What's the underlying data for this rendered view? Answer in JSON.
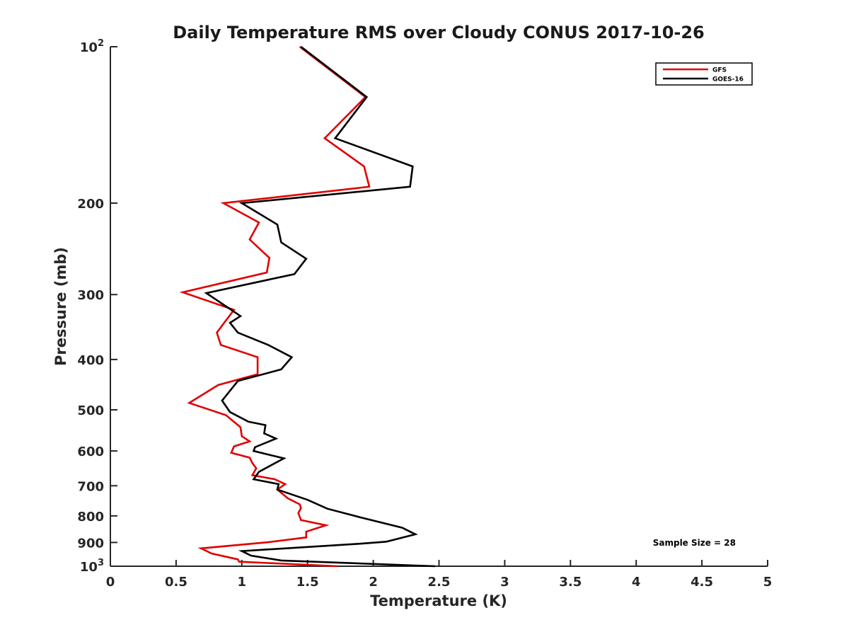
{
  "chart_data": {
    "type": "line",
    "title": "Daily Temperature RMS over Cloudy CONUS 2017-10-26",
    "xlabel": "Temperature (K)",
    "ylabel": "Pressure (mb)",
    "xlim": [
      0,
      5
    ],
    "ylim": [
      100,
      1000
    ],
    "y_scale": "log",
    "y_reversed": true,
    "x_ticks": [
      0,
      0.5,
      1,
      1.5,
      2,
      2.5,
      3,
      3.5,
      4,
      4.5,
      5
    ],
    "x_tick_labels": [
      "0",
      "0.5",
      "1",
      "1.5",
      "2",
      "2.5",
      "3",
      "3.5",
      "4",
      "4.5",
      "5"
    ],
    "y_ticks": [
      100,
      200,
      300,
      400,
      500,
      600,
      700,
      800,
      900,
      1000
    ],
    "y_tick_labels": [
      "10^2",
      "200",
      "300",
      "400",
      "500",
      "600",
      "700",
      "800",
      "900",
      "10^3"
    ],
    "grid": false,
    "legend_position": "top-right",
    "series": [
      {
        "name": "GFS",
        "color": "#e00000",
        "points": [
          [
            1.44,
            100
          ],
          [
            1.94,
            125
          ],
          [
            1.63,
            150
          ],
          [
            1.93,
            170
          ],
          [
            1.97,
            186
          ],
          [
            0.86,
            200
          ],
          [
            1.13,
            218
          ],
          [
            1.06,
            235
          ],
          [
            1.21,
            255
          ],
          [
            1.19,
            272
          ],
          [
            0.55,
            297
          ],
          [
            0.94,
            321
          ],
          [
            0.81,
            355
          ],
          [
            0.84,
            375
          ],
          [
            1.12,
            396
          ],
          [
            1.12,
            427
          ],
          [
            0.82,
            448
          ],
          [
            0.6,
            485
          ],
          [
            0.88,
            512
          ],
          [
            0.99,
            540
          ],
          [
            1.0,
            562
          ],
          [
            1.06,
            575
          ],
          [
            0.94,
            588
          ],
          [
            0.92,
            605
          ],
          [
            1.06,
            618
          ],
          [
            1.08,
            633
          ],
          [
            1.11,
            648
          ],
          [
            1.08,
            668
          ],
          [
            1.25,
            680
          ],
          [
            1.33,
            695
          ],
          [
            1.27,
            712
          ],
          [
            1.35,
            740
          ],
          [
            1.44,
            760
          ],
          [
            1.45,
            773
          ],
          [
            1.43,
            790
          ],
          [
            1.45,
            815
          ],
          [
            1.64,
            834
          ],
          [
            1.49,
            858
          ],
          [
            1.49,
            880
          ],
          [
            1.2,
            899
          ],
          [
            0.69,
            924
          ],
          [
            0.77,
            945
          ],
          [
            0.97,
            970
          ],
          [
            0.98,
            980
          ],
          [
            1.73,
            1000
          ]
        ]
      },
      {
        "name": "GOES-16",
        "color": "#000000",
        "points": [
          [
            1.45,
            100
          ],
          [
            1.95,
            125
          ],
          [
            1.71,
            150
          ],
          [
            2.3,
            170
          ],
          [
            2.28,
            186
          ],
          [
            1.0,
            200
          ],
          [
            1.27,
            220
          ],
          [
            1.3,
            238
          ],
          [
            1.49,
            256
          ],
          [
            1.4,
            274
          ],
          [
            0.73,
            298
          ],
          [
            0.99,
            330
          ],
          [
            0.91,
            340
          ],
          [
            0.97,
            355
          ],
          [
            1.2,
            375
          ],
          [
            1.38,
            396
          ],
          [
            1.3,
            418
          ],
          [
            0.97,
            440
          ],
          [
            0.85,
            480
          ],
          [
            0.91,
            505
          ],
          [
            1.05,
            527
          ],
          [
            1.18,
            535
          ],
          [
            1.17,
            555
          ],
          [
            1.26,
            568
          ],
          [
            1.1,
            590
          ],
          [
            1.09,
            600
          ],
          [
            1.32,
            620
          ],
          [
            1.13,
            658
          ],
          [
            1.09,
            680
          ],
          [
            1.28,
            695
          ],
          [
            1.27,
            712
          ],
          [
            1.5,
            745
          ],
          [
            1.65,
            775
          ],
          [
            1.9,
            805
          ],
          [
            2.22,
            843
          ],
          [
            2.32,
            868
          ],
          [
            2.1,
            897
          ],
          [
            1.9,
            905
          ],
          [
            1.0,
            935
          ],
          [
            1.07,
            954
          ],
          [
            1.3,
            975
          ],
          [
            2.47,
            1000
          ]
        ]
      }
    ],
    "annotation": "Sample Size = 28"
  }
}
